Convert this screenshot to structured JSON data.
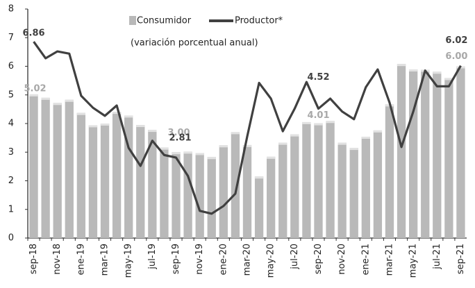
{
  "chart_data": {
    "type": "bar_line",
    "legend_title": "(variación porcentual anual)",
    "categories": [
      "sep-18",
      null,
      "nov-18",
      null,
      "ene-19",
      null,
      "mar-19",
      null,
      "may-19",
      null,
      "jul-19",
      null,
      "sep-19",
      null,
      "nov-19",
      null,
      "ene-20",
      null,
      "mar-20",
      null,
      "may-20",
      null,
      "jul-20",
      null,
      "sep-20",
      null,
      "nov-20",
      null,
      "ene-21",
      null,
      "mar-21",
      null,
      "may-21",
      null,
      "jul-21",
      null,
      "sep-21"
    ],
    "series": [
      {
        "name": "Consumidor",
        "kind": "bar",
        "color": "#b9b9b9",
        "values": [
          5.02,
          4.9,
          4.72,
          4.83,
          4.37,
          3.94,
          4.0,
          4.41,
          4.28,
          3.95,
          3.78,
          3.16,
          3.0,
          3.02,
          2.97,
          2.83,
          3.24,
          3.7,
          3.25,
          2.15,
          2.84,
          3.33,
          3.62,
          4.05,
          4.01,
          4.09,
          3.33,
          3.15,
          3.54,
          3.76,
          4.67,
          6.08,
          5.89,
          5.88,
          5.81,
          5.59,
          6.0
        ],
        "value_labels": [
          "5.02",
          null,
          null,
          null,
          null,
          null,
          null,
          null,
          null,
          null,
          null,
          null,
          "3.00",
          null,
          null,
          null,
          null,
          null,
          null,
          null,
          null,
          null,
          null,
          null,
          "4.01",
          null,
          null,
          null,
          null,
          null,
          null,
          null,
          null,
          null,
          null,
          null,
          "6.00"
        ]
      },
      {
        "name": "Productor*",
        "kind": "line",
        "color": "#404040",
        "values": [
          6.86,
          6.28,
          6.52,
          6.44,
          4.97,
          4.55,
          4.27,
          4.63,
          3.15,
          2.52,
          3.4,
          2.9,
          2.81,
          2.17,
          0.95,
          0.85,
          1.12,
          1.55,
          3.55,
          5.42,
          4.87,
          3.73,
          4.52,
          5.45,
          4.52,
          4.87,
          4.42,
          4.15,
          5.27,
          5.89,
          4.73,
          3.18,
          4.42,
          5.85,
          5.3,
          5.3,
          6.02
        ],
        "value_labels": [
          "6.86",
          null,
          null,
          null,
          null,
          null,
          null,
          null,
          null,
          null,
          null,
          null,
          "2.81",
          null,
          null,
          null,
          null,
          null,
          null,
          null,
          null,
          null,
          null,
          null,
          "4.52",
          null,
          null,
          null,
          null,
          null,
          null,
          null,
          null,
          null,
          null,
          null,
          "6.02"
        ]
      }
    ],
    "ylim": [
      0,
      8
    ],
    "yticks": [
      0,
      1,
      2,
      3,
      4,
      5,
      6,
      7,
      8
    ],
    "grid": false
  }
}
